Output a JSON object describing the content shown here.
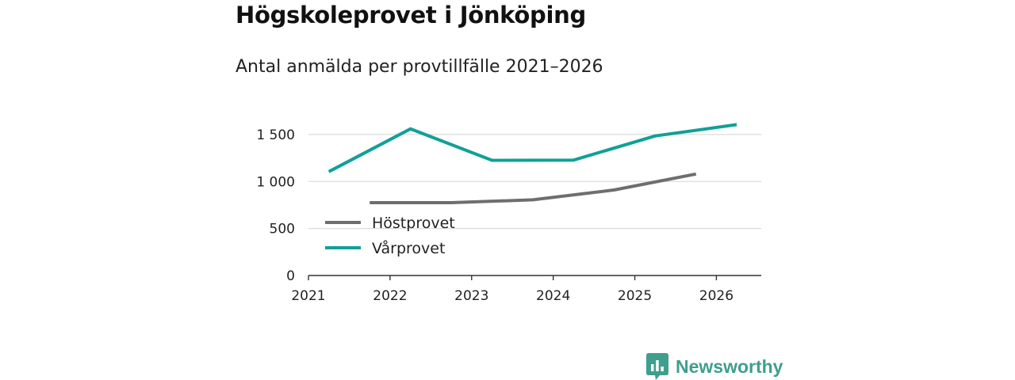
{
  "title": "Högskoleprovet i Jönköping",
  "subtitle": "Antal anmälda per provtillfälle 2021–2026",
  "chart_data": {
    "type": "line",
    "title": "Högskoleprovet i Jönköping",
    "subtitle": "Antal anmälda per provtillfälle 2021–2026",
    "xlabel": "",
    "ylabel": "",
    "xlim": [
      2021,
      2026.55
    ],
    "ylim": [
      0,
      1600
    ],
    "x_ticks": [
      2021,
      2022,
      2023,
      2024,
      2025,
      2026
    ],
    "x_tick_labels": [
      "2021",
      "2022",
      "2023",
      "2024",
      "2025",
      "2026"
    ],
    "y_ticks": [
      0,
      500,
      1000,
      1500
    ],
    "y_tick_labels": [
      "0",
      "500",
      "1 000",
      "1 500"
    ],
    "grid": true,
    "legend_position": "lower-left inside",
    "series": [
      {
        "name": "Höstprovet",
        "color": "#6e6e6e",
        "x": [
          2021.75,
          2022.75,
          2023.75,
          2024.75,
          2025.75
        ],
        "y": [
          775,
          775,
          805,
          910,
          1080
        ]
      },
      {
        "name": "Vårprovet",
        "color": "#11a096",
        "x": [
          2021.25,
          2022.25,
          2023.25,
          2024.25,
          2025.25,
          2026.25
        ],
        "y": [
          1105,
          1560,
          1225,
          1228,
          1485,
          1605
        ]
      }
    ]
  },
  "brand": {
    "name": "Newsworthy",
    "color": "#3f9e8d"
  }
}
